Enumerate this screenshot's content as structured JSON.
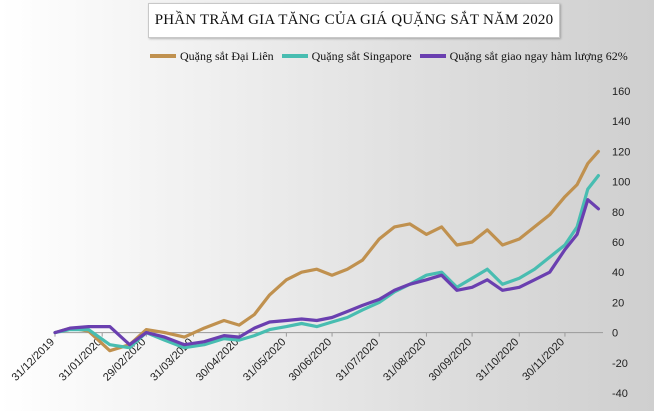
{
  "chart_data": {
    "type": "line",
    "title": "PHẦN TRĂM GIA TĂNG CỦA GIÁ QUẶNG SẮT NĂM 2020",
    "xlabel": "",
    "ylabel": "",
    "ylim": [
      -40,
      160
    ],
    "yticks": [
      -40,
      -20,
      0,
      20,
      40,
      60,
      80,
      100,
      120,
      140,
      160
    ],
    "x_tick_labels": [
      "31/12/2019",
      "31/01/2020",
      "29/02/2020",
      "31/03/2020",
      "30/04/2020",
      "31/05/2020",
      "30/06/2020",
      "31/07/2020",
      "31/08/2020",
      "30/09/2020",
      "31/10/2020",
      "30/11/2020"
    ],
    "x_tick_dates": [
      "2019-12-31",
      "2020-01-31",
      "2020-02-29",
      "2020-03-31",
      "2020-04-30",
      "2020-05-31",
      "2020-06-30",
      "2020-07-31",
      "2020-08-31",
      "2020-09-30",
      "2020-10-31",
      "2020-11-30"
    ],
    "grid": false,
    "legend": "top",
    "series": [
      {
        "name": "Quặng sắt Đại Liên",
        "color": "#c0914f",
        "dates": [
          "2019-12-31",
          "2020-01-10",
          "2020-01-22",
          "2020-02-05",
          "2020-02-18",
          "2020-02-29",
          "2020-03-12",
          "2020-03-25",
          "2020-04-07",
          "2020-04-20",
          "2020-04-30",
          "2020-05-10",
          "2020-05-20",
          "2020-05-31",
          "2020-06-10",
          "2020-06-20",
          "2020-06-30",
          "2020-07-10",
          "2020-07-20",
          "2020-07-31",
          "2020-08-10",
          "2020-08-20",
          "2020-08-31",
          "2020-09-10",
          "2020-09-20",
          "2020-09-30",
          "2020-10-10",
          "2020-10-20",
          "2020-10-31",
          "2020-11-10",
          "2020-11-20",
          "2020-11-30",
          "2020-12-08",
          "2020-12-15",
          "2020-12-22"
        ],
        "values": [
          0,
          3,
          1,
          -12,
          -8,
          2,
          0,
          -3,
          3,
          8,
          5,
          12,
          25,
          35,
          40,
          42,
          38,
          42,
          48,
          62,
          70,
          72,
          65,
          70,
          58,
          60,
          68,
          58,
          62,
          70,
          78,
          90,
          98,
          112,
          120
        ]
      },
      {
        "name": "Quặng sắt Singapore",
        "color": "#48bdb1",
        "dates": [
          "2019-12-31",
          "2020-01-10",
          "2020-01-22",
          "2020-02-05",
          "2020-02-18",
          "2020-02-29",
          "2020-03-12",
          "2020-03-25",
          "2020-04-07",
          "2020-04-20",
          "2020-04-30",
          "2020-05-10",
          "2020-05-20",
          "2020-05-31",
          "2020-06-10",
          "2020-06-20",
          "2020-06-30",
          "2020-07-10",
          "2020-07-20",
          "2020-07-31",
          "2020-08-10",
          "2020-08-20",
          "2020-08-31",
          "2020-09-10",
          "2020-09-20",
          "2020-09-30",
          "2020-10-10",
          "2020-10-20",
          "2020-10-31",
          "2020-11-10",
          "2020-11-20",
          "2020-11-30",
          "2020-12-08",
          "2020-12-15",
          "2020-12-22"
        ],
        "values": [
          0,
          2,
          2,
          -8,
          -10,
          0,
          -5,
          -10,
          -8,
          -4,
          -5,
          -2,
          2,
          4,
          6,
          4,
          7,
          10,
          15,
          20,
          27,
          32,
          38,
          40,
          30,
          36,
          42,
          32,
          36,
          42,
          50,
          58,
          70,
          95,
          104
        ]
      },
      {
        "name": "Quặng sắt giao ngay hàm lượng 62%",
        "color": "#6a3fb0",
        "dates": [
          "2019-12-31",
          "2020-01-10",
          "2020-01-22",
          "2020-02-05",
          "2020-02-18",
          "2020-02-29",
          "2020-03-12",
          "2020-03-25",
          "2020-04-07",
          "2020-04-20",
          "2020-04-30",
          "2020-05-10",
          "2020-05-20",
          "2020-05-31",
          "2020-06-10",
          "2020-06-20",
          "2020-06-30",
          "2020-07-10",
          "2020-07-20",
          "2020-07-31",
          "2020-08-10",
          "2020-08-20",
          "2020-08-31",
          "2020-09-10",
          "2020-09-20",
          "2020-09-30",
          "2020-10-10",
          "2020-10-20",
          "2020-10-31",
          "2020-11-10",
          "2020-11-20",
          "2020-11-30",
          "2020-12-08",
          "2020-12-15",
          "2020-12-22"
        ],
        "values": [
          0,
          3,
          4,
          4,
          -8,
          0,
          -3,
          -8,
          -6,
          -2,
          -3,
          3,
          7,
          8,
          9,
          8,
          10,
          14,
          18,
          22,
          28,
          32,
          35,
          38,
          28,
          30,
          35,
          28,
          30,
          35,
          40,
          55,
          65,
          88,
          82
        ]
      }
    ]
  }
}
